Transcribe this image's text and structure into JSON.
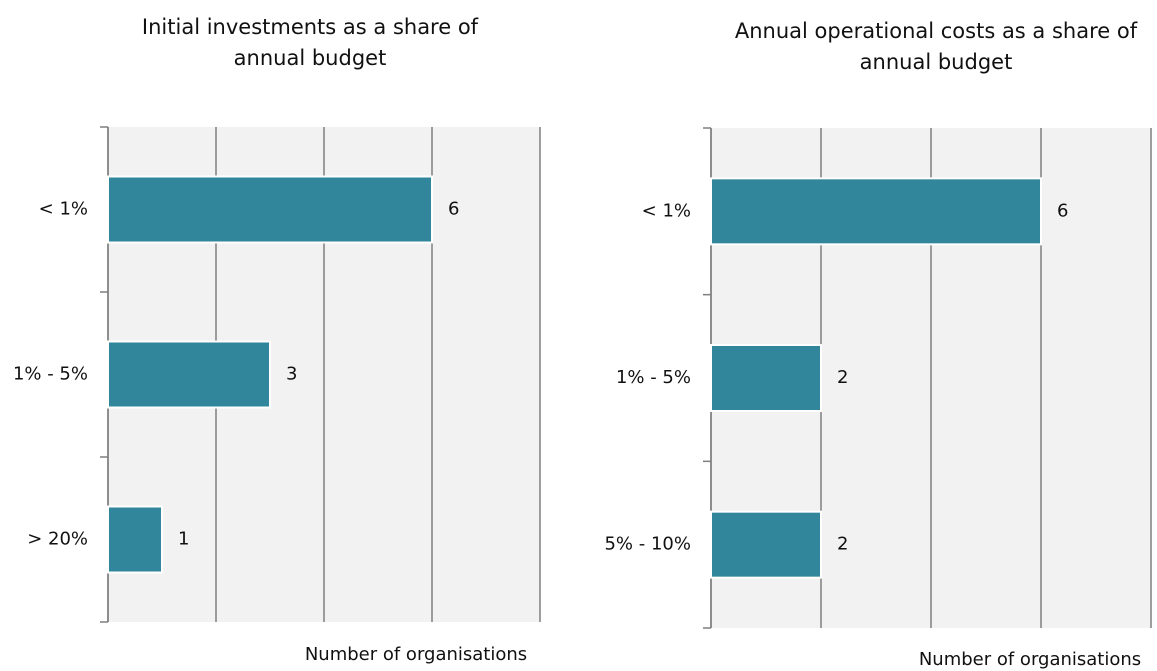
{
  "chart_data": [
    {
      "type": "bar",
      "orientation": "horizontal",
      "title": [
        "Initial investments as a share of",
        "annual budget"
      ],
      "categories": [
        "< 1%",
        "1% - 5%",
        "> 20%"
      ],
      "values": [
        6,
        3,
        1
      ],
      "color": "#31869b",
      "xlabel": "Number of organisations",
      "xlim": [
        0,
        8
      ],
      "xticks": [
        0,
        2,
        4,
        6,
        8
      ],
      "grid": true
    },
    {
      "type": "bar",
      "orientation": "horizontal",
      "title": [
        "Annual operational costs as a share of",
        "annual budget"
      ],
      "categories": [
        "< 1%",
        "1% - 5%",
        "5% - 10%"
      ],
      "values": [
        6,
        2,
        2
      ],
      "color": "#31869b",
      "xlabel": "Number of organisations",
      "xlim": [
        0,
        8
      ],
      "xticks": [
        0,
        2,
        4,
        6,
        8
      ],
      "grid": true
    }
  ]
}
